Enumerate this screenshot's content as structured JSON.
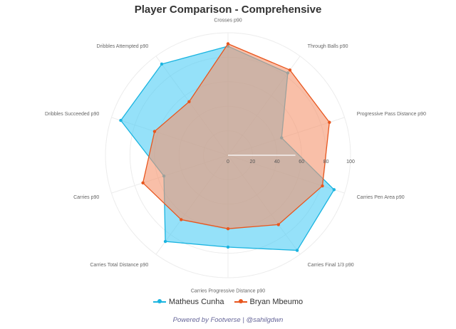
{
  "chart_data": {
    "type": "radar",
    "title": "Player Comparison - Comprehensive",
    "axes": [
      "Crosses p90",
      "Through Balls p90",
      "Progressive Pass Distance p90",
      "Carries Pen Area p90",
      "Carries Final 1/3 p90",
      "Carries Progressive Distance p90",
      "Carries Total Distance p90",
      "Carries p90",
      "Dribbles Succeeded p90",
      "Dribbles Attempted p90"
    ],
    "rlim": [
      0,
      100
    ],
    "ticks": [
      0,
      20,
      40,
      60,
      80,
      100
    ],
    "series": [
      {
        "name": "Matheus Cunha",
        "color": "#1ab4e0",
        "fill": "#4ecdf5",
        "values": [
          89,
          83,
          46,
          91,
          96,
          75,
          87,
          55,
          92,
          92
        ]
      },
      {
        "name": "Bryan Mbeumo",
        "color": "#e8561e",
        "fill": "#f5946e",
        "values": [
          91,
          86,
          87,
          81,
          70,
          60,
          65,
          73,
          63,
          54
        ]
      }
    ],
    "legend_position": "bottom"
  },
  "footer": "Powered by Footverse | @sahilgdwn"
}
